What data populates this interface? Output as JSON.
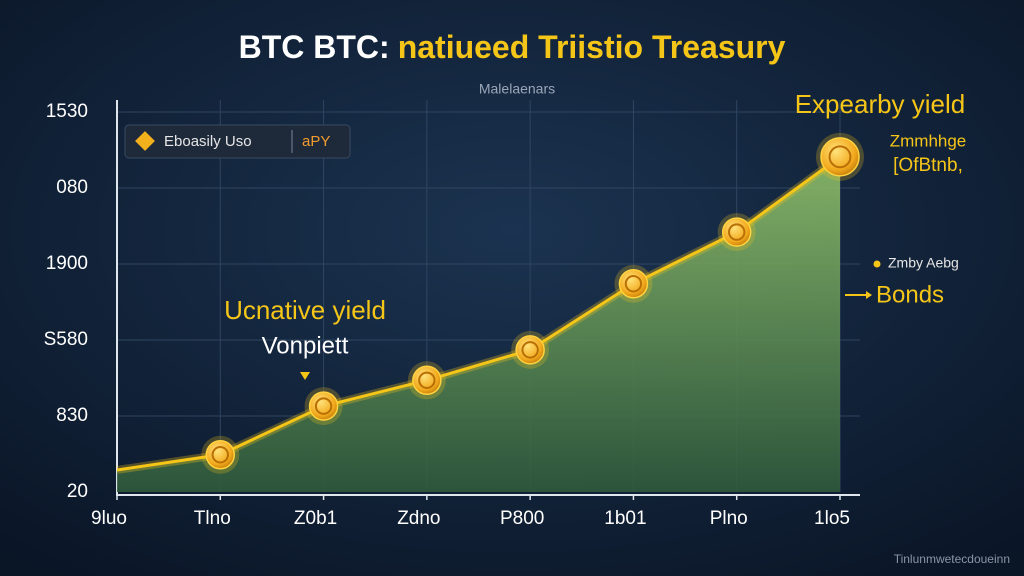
{
  "chart_data": {
    "type": "area",
    "title_lead": "BTC BTC:",
    "title": "natiueed Triistio Treasury",
    "subtitle": "Malelaenars",
    "y_categories": [
      "20",
      "830",
      "S580",
      "1900",
      "080",
      "1530"
    ],
    "categories": [
      "9luo",
      "Tlno",
      "Z0b1",
      "Zdno",
      "P800",
      "1b01",
      "Plno",
      "1lo5"
    ],
    "series": [
      {
        "name": "Eboasily Uso",
        "color": "#f5c518",
        "values": [
          0.29,
          0.49,
          1.13,
          1.47,
          1.87,
          2.74,
          3.42,
          4.41
        ]
      }
    ],
    "legend_suffix": "aPY",
    "grid": true,
    "annotations": {
      "left_label": "Ucnative yield",
      "left_sublabel": "Vonpiett",
      "top_label": "Expearby yield",
      "top_sub_1": "Zmmhhge",
      "top_sub_2": "[OfBtnb,",
      "right_small": "Zmby Aebg",
      "right_label": "Bonds"
    },
    "footer": "Tinlunmwetecdoueinn"
  }
}
